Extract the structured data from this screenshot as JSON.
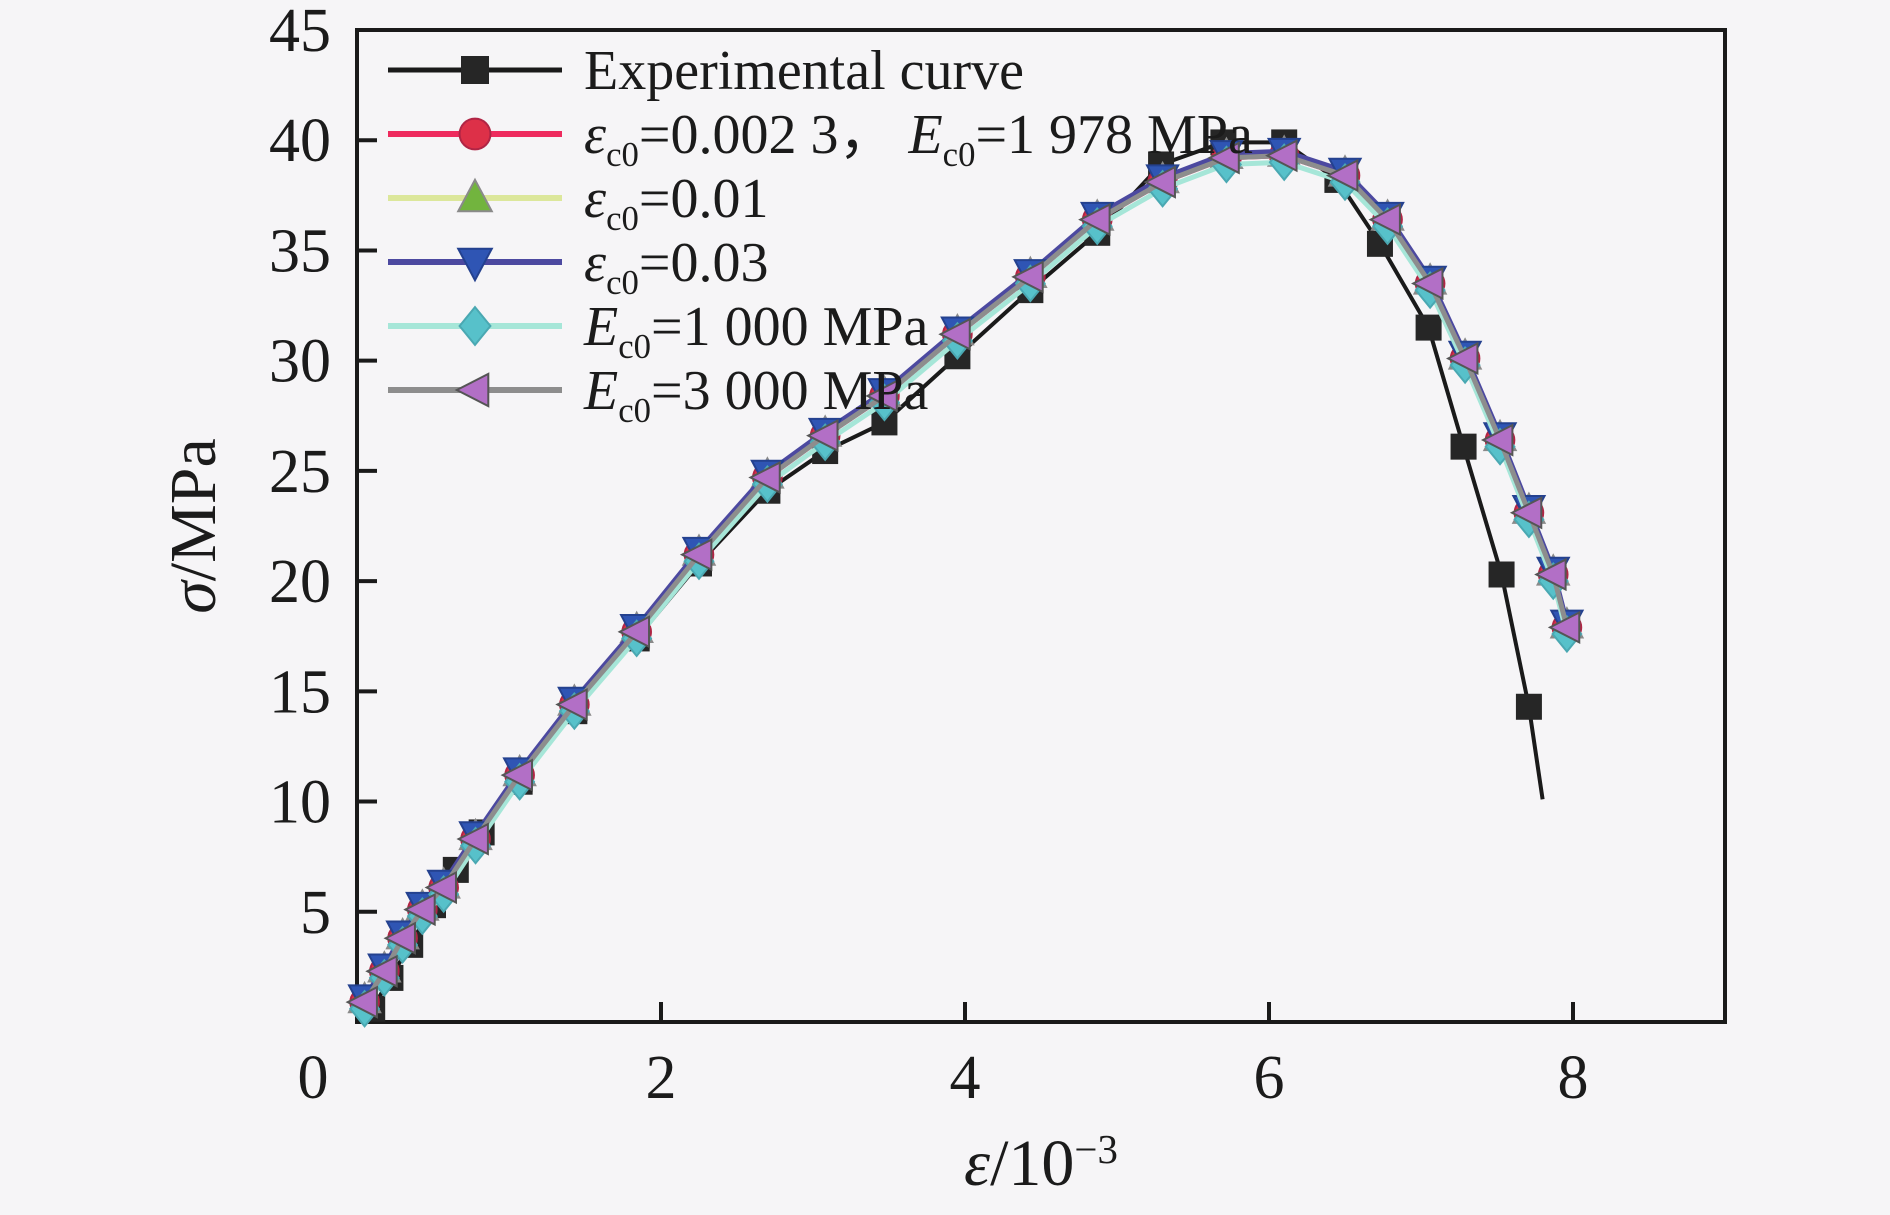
{
  "figure": {
    "background": "#f6f5f7",
    "frame_color": "#1a1a1a",
    "text_color": "#1b1b1b"
  },
  "chart_data": {
    "type": "line",
    "title": "",
    "xlabel": "*ε*/10^{−3}",
    "ylabel": "*σ*/MPa",
    "xlim": [
      0,
      9
    ],
    "ylim": [
      0,
      45
    ],
    "x_ticks": [
      2,
      4,
      6,
      8
    ],
    "y_ticks": [
      5,
      10,
      15,
      20,
      25,
      30,
      35,
      40,
      45
    ],
    "origin_label": "0",
    "grid": false,
    "legend_position": "top-left-inside",
    "series": [
      {
        "id": "experimental",
        "label": "Experimental curve",
        "line_color": "#1a1a1a",
        "line_width": 4,
        "marker": {
          "shape": "square",
          "fill": "#262626",
          "stroke": "none",
          "size": 13
        },
        "marker_on_last": false,
        "x": [
          0.1,
          0.22,
          0.35,
          0.5,
          0.65,
          0.82,
          1.07,
          1.43,
          1.84,
          2.25,
          2.7,
          3.08,
          3.47,
          3.95,
          4.43,
          4.87,
          5.29,
          5.7,
          6.1,
          6.45,
          6.73,
          7.05,
          7.28,
          7.53,
          7.71,
          7.8
        ],
        "y": [
          0.6,
          2.0,
          3.5,
          5.3,
          6.9,
          8.6,
          10.9,
          14.1,
          17.4,
          20.8,
          24.1,
          25.9,
          27.2,
          30.2,
          33.2,
          35.8,
          38.9,
          39.9,
          39.9,
          38.2,
          35.3,
          31.5,
          26.1,
          20.3,
          14.3,
          10.1
        ]
      },
      {
        "id": "model-eps0023",
        "label": "*ε*_{c0}=0.002 3， *E*_{c0}=1 978 MPa",
        "line_color": "#ee2b5e",
        "line_width": 5,
        "marker": {
          "shape": "circle",
          "fill": "#dd3048",
          "stroke": "#b02545",
          "size": 13
        },
        "marker_on_last": true,
        "x": [
          0.05,
          0.18,
          0.3,
          0.43,
          0.57,
          0.78,
          1.07,
          1.43,
          1.84,
          2.25,
          2.7,
          3.08,
          3.47,
          3.95,
          4.43,
          4.87,
          5.3,
          5.72,
          6.1,
          6.5,
          6.78,
          7.06,
          7.29,
          7.52,
          7.71,
          7.87,
          7.96
        ],
        "y": [
          0.9,
          2.3,
          3.8,
          5.1,
          6.1,
          8.3,
          11.2,
          14.4,
          17.7,
          21.2,
          24.7,
          26.6,
          28.4,
          31.2,
          33.8,
          36.4,
          38.1,
          39.2,
          39.3,
          38.4,
          36.4,
          33.5,
          30.1,
          26.4,
          23.1,
          20.3,
          17.9
        ]
      },
      {
        "id": "model-eps001",
        "label": "*ε*_{c0}=0.01",
        "line_color": "#dce79b",
        "line_width": 5,
        "marker": {
          "shape": "triangle-up",
          "fill": "#72b43e",
          "stroke": "#8a8a8a",
          "size": 13
        },
        "marker_on_last": true,
        "x": [
          0.05,
          0.18,
          0.3,
          0.43,
          0.57,
          0.78,
          1.07,
          1.43,
          1.84,
          2.25,
          2.7,
          3.08,
          3.47,
          3.95,
          4.43,
          4.87,
          5.3,
          5.72,
          6.1,
          6.5,
          6.78,
          7.06,
          7.29,
          7.52,
          7.71,
          7.87,
          7.96
        ],
        "y": [
          1.0,
          2.4,
          3.9,
          5.2,
          6.2,
          8.4,
          11.3,
          14.5,
          17.8,
          21.3,
          24.8,
          26.7,
          28.5,
          31.3,
          33.9,
          36.5,
          38.2,
          39.3,
          39.4,
          38.5,
          36.5,
          33.6,
          30.2,
          26.5,
          23.2,
          20.4,
          18.0
        ]
      },
      {
        "id": "model-eps003",
        "label": "*ε*_{c0}=0.03",
        "line_color": "#4c49a0",
        "line_width": 5,
        "marker": {
          "shape": "triangle-down",
          "fill": "#2f55b4",
          "stroke": "#24418f",
          "size": 13
        },
        "marker_on_last": true,
        "x": [
          0.05,
          0.18,
          0.3,
          0.43,
          0.57,
          0.78,
          1.07,
          1.43,
          1.84,
          2.25,
          2.7,
          3.08,
          3.47,
          3.95,
          4.43,
          4.87,
          5.3,
          5.72,
          6.1,
          6.5,
          6.78,
          7.06,
          7.29,
          7.52,
          7.71,
          7.87,
          7.96
        ],
        "y": [
          1.1,
          2.5,
          4.0,
          5.3,
          6.3,
          8.5,
          11.4,
          14.6,
          17.9,
          21.4,
          24.9,
          26.8,
          28.6,
          31.4,
          34.0,
          36.6,
          38.3,
          39.4,
          39.5,
          38.6,
          36.6,
          33.7,
          30.3,
          26.6,
          23.3,
          20.5,
          18.1
        ]
      },
      {
        "id": "model-E1000",
        "label": "*E*_{c0}=1 000 MPa",
        "line_color": "#a6e6d8",
        "line_width": 5,
        "marker": {
          "shape": "diamond",
          "fill": "#57c1ca",
          "stroke": "#4aa8b2",
          "size": 13
        },
        "marker_on_last": true,
        "x": [
          0.05,
          0.18,
          0.3,
          0.43,
          0.57,
          0.78,
          1.07,
          1.43,
          1.84,
          2.25,
          2.7,
          3.08,
          3.47,
          3.95,
          4.43,
          4.87,
          5.3,
          5.72,
          6.1,
          6.5,
          6.78,
          7.06,
          7.29,
          7.52,
          7.71,
          7.87,
          7.96
        ],
        "y": [
          0.6,
          2.0,
          3.5,
          4.8,
          5.8,
          8.0,
          10.9,
          14.1,
          17.4,
          20.9,
          24.4,
          26.3,
          28.1,
          30.9,
          33.5,
          36.1,
          37.8,
          38.9,
          39.0,
          38.1,
          36.1,
          33.2,
          29.8,
          26.1,
          22.8,
          20.0,
          17.6
        ]
      },
      {
        "id": "model-E3000",
        "label": "*E*_{c0}=3 000 MPa",
        "line_color": "#8d8d8d",
        "line_width": 5,
        "marker": {
          "shape": "triangle-left",
          "fill": "#b26fc6",
          "stroke": "#555555",
          "size": 13
        },
        "marker_on_last": true,
        "x": [
          0.05,
          0.18,
          0.3,
          0.43,
          0.57,
          0.78,
          1.07,
          1.43,
          1.84,
          2.25,
          2.7,
          3.08,
          3.47,
          3.95,
          4.43,
          4.87,
          5.3,
          5.72,
          6.1,
          6.5,
          6.78,
          7.06,
          7.29,
          7.52,
          7.71,
          7.87,
          7.96
        ],
        "y": [
          0.9,
          2.3,
          3.8,
          5.1,
          6.1,
          8.3,
          11.2,
          14.4,
          17.7,
          21.2,
          24.7,
          26.6,
          28.4,
          31.2,
          33.8,
          36.4,
          38.1,
          39.2,
          39.3,
          38.4,
          36.4,
          33.5,
          30.1,
          26.4,
          23.1,
          20.3,
          17.9
        ]
      }
    ]
  }
}
